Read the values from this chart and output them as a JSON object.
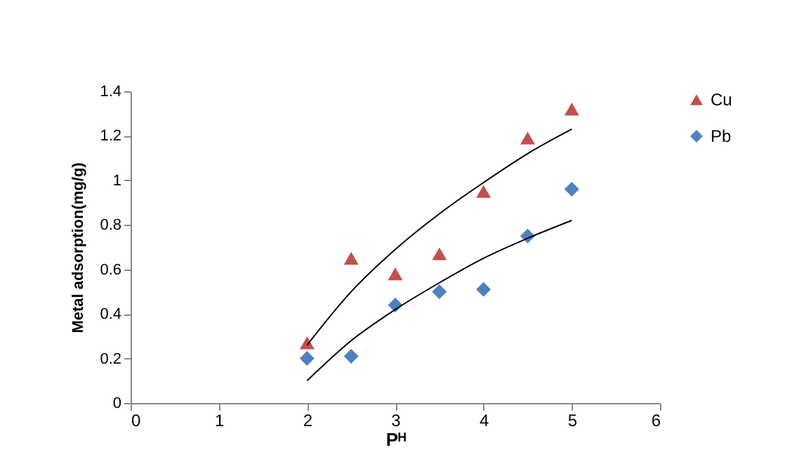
{
  "chart_data": {
    "type": "scatter",
    "xlabel": "Pᴴ",
    "ylabel": "Metal adsorption(mg/g)",
    "xlim": [
      0,
      6
    ],
    "xticks": [
      0,
      1,
      2,
      3,
      4,
      5,
      6
    ],
    "ylim": [
      0,
      1.4
    ],
    "yticks": [
      0,
      0.2,
      0.4,
      0.6,
      0.8,
      1,
      1.2,
      1.4
    ],
    "grid": false,
    "legend": "right",
    "series": [
      {
        "name": "Cu",
        "color": "#c0504d",
        "marker": "triangle",
        "x": [
          2,
          2.5,
          3,
          3.5,
          4,
          4.5,
          5
        ],
        "values": [
          0.27,
          0.65,
          0.58,
          0.67,
          0.95,
          1.19,
          1.32
        ]
      },
      {
        "name": "Pb",
        "color": "#4f81bd",
        "marker": "diamond",
        "x": [
          2,
          2.5,
          3,
          3.5,
          4,
          4.5,
          5
        ],
        "values": [
          0.2,
          0.21,
          0.44,
          0.5,
          0.51,
          0.75,
          0.96
        ]
      },
      {
        "type": "line",
        "color": "#000000",
        "marker": "none",
        "x": [
          2,
          2.5,
          3,
          3.5,
          4,
          4.5,
          5
        ],
        "values": [
          0.26,
          0.5,
          0.69,
          0.85,
          0.99,
          1.12,
          1.23
        ]
      },
      {
        "type": "line",
        "color": "#000000",
        "marker": "none",
        "x": [
          2,
          2.5,
          3,
          3.5,
          4,
          4.5,
          5
        ],
        "values": [
          0.1,
          0.28,
          0.42,
          0.54,
          0.65,
          0.74,
          0.82
        ]
      }
    ]
  }
}
